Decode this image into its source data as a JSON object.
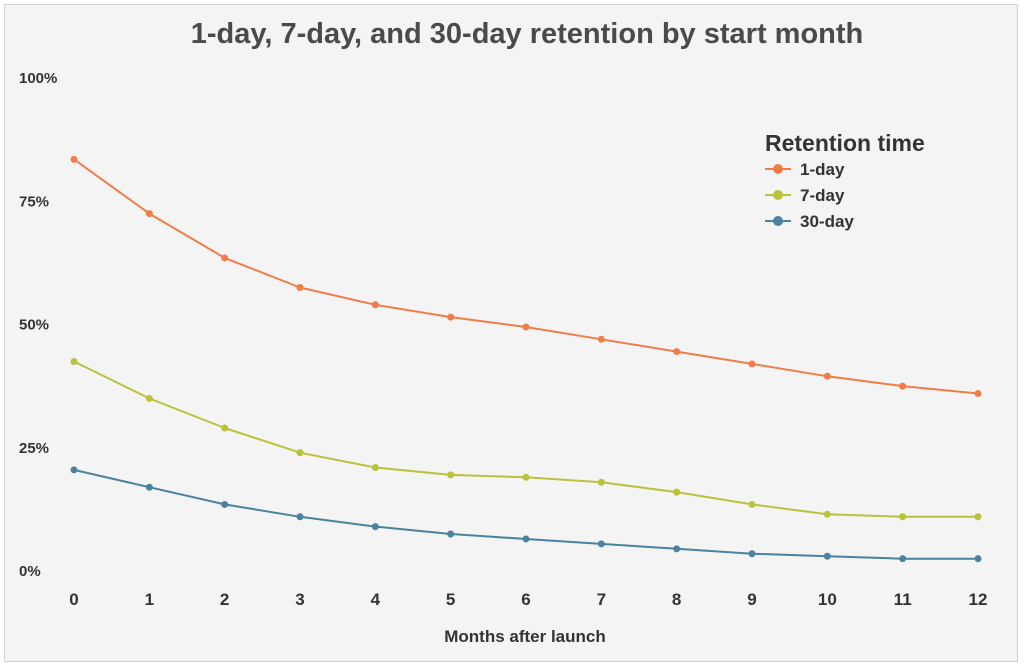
{
  "chart_data": {
    "type": "line",
    "title": "1-day, 7-day, and 30-day retention by start month",
    "xlabel": "Months after launch",
    "ylabel": "",
    "x": [
      0,
      1,
      2,
      3,
      4,
      5,
      6,
      7,
      8,
      9,
      10,
      11,
      12
    ],
    "x_tick_labels": [
      "0",
      "1",
      "2",
      "3",
      "4",
      "5",
      "6",
      "7",
      "8",
      "9",
      "10",
      "11",
      "12"
    ],
    "ylim": [
      0,
      100
    ],
    "y_tick_values": [
      0,
      25,
      50,
      75,
      100
    ],
    "y_tick_labels": [
      "0%",
      "25%",
      "50%",
      "75%",
      "100%"
    ],
    "grid": false,
    "legend": {
      "title": "Retention time",
      "position": "top-right"
    },
    "series": [
      {
        "name": "1-day",
        "color": "#f07d47",
        "values": [
          83.5,
          72.5,
          63.5,
          57.5,
          54.0,
          51.5,
          49.5,
          47.0,
          44.5,
          42.0,
          39.5,
          37.5,
          36.0
        ]
      },
      {
        "name": "7-day",
        "color": "#b9c23a",
        "values": [
          42.5,
          35.0,
          29.0,
          24.0,
          21.0,
          19.5,
          19.0,
          18.0,
          16.0,
          13.5,
          11.5,
          11.0,
          11.0
        ]
      },
      {
        "name": "30-day",
        "color": "#4a82a0",
        "values": [
          20.5,
          17.0,
          13.5,
          11.0,
          9.0,
          7.5,
          6.5,
          5.5,
          4.5,
          3.5,
          3.0,
          2.5,
          2.5
        ]
      }
    ]
  }
}
